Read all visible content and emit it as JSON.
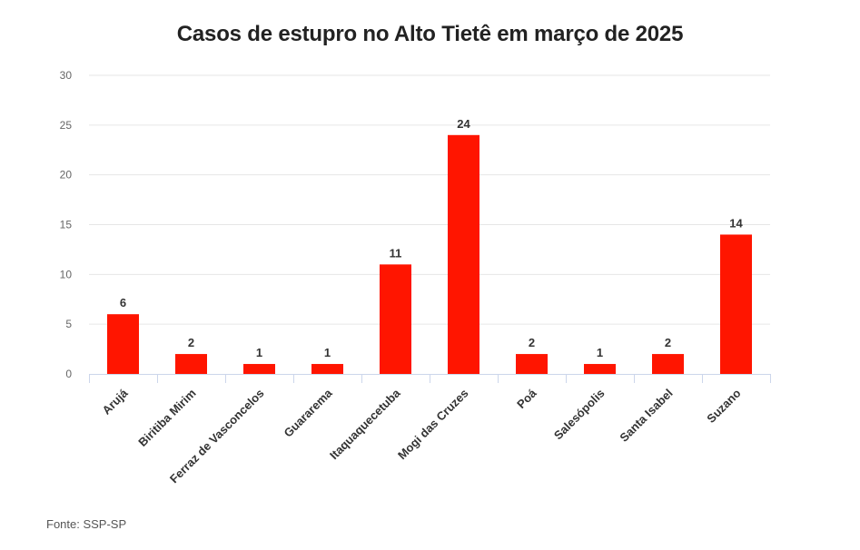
{
  "title": "Casos de estupro no Alto Tietê em março de 2025",
  "source": "Fonte: SSP-SP",
  "colors": {
    "bar": "#ff1500",
    "grid": "#e6e6e6",
    "axis": "#ccd6eb",
    "text": "#333333",
    "tick": "#666666"
  },
  "chart_data": {
    "type": "bar",
    "title": "Casos de estupro no Alto Tietê em março de 2025",
    "xlabel": "",
    "ylabel": "",
    "categories": [
      "Arujá",
      "Biritiba Mirim",
      "Ferraz de Vasconcelos",
      "Guararema",
      "Itaquaquecetuba",
      "Mogi das Cruzes",
      "Poá",
      "Salesópolis",
      "Santa Isabel",
      "Suzano"
    ],
    "values": [
      6,
      2,
      1,
      1,
      11,
      24,
      2,
      1,
      2,
      14
    ],
    "ylim": [
      0,
      30
    ],
    "yticks": [
      0,
      5,
      10,
      15,
      20,
      25,
      30
    ],
    "grid": true,
    "legend": "none",
    "data_labels": true
  }
}
